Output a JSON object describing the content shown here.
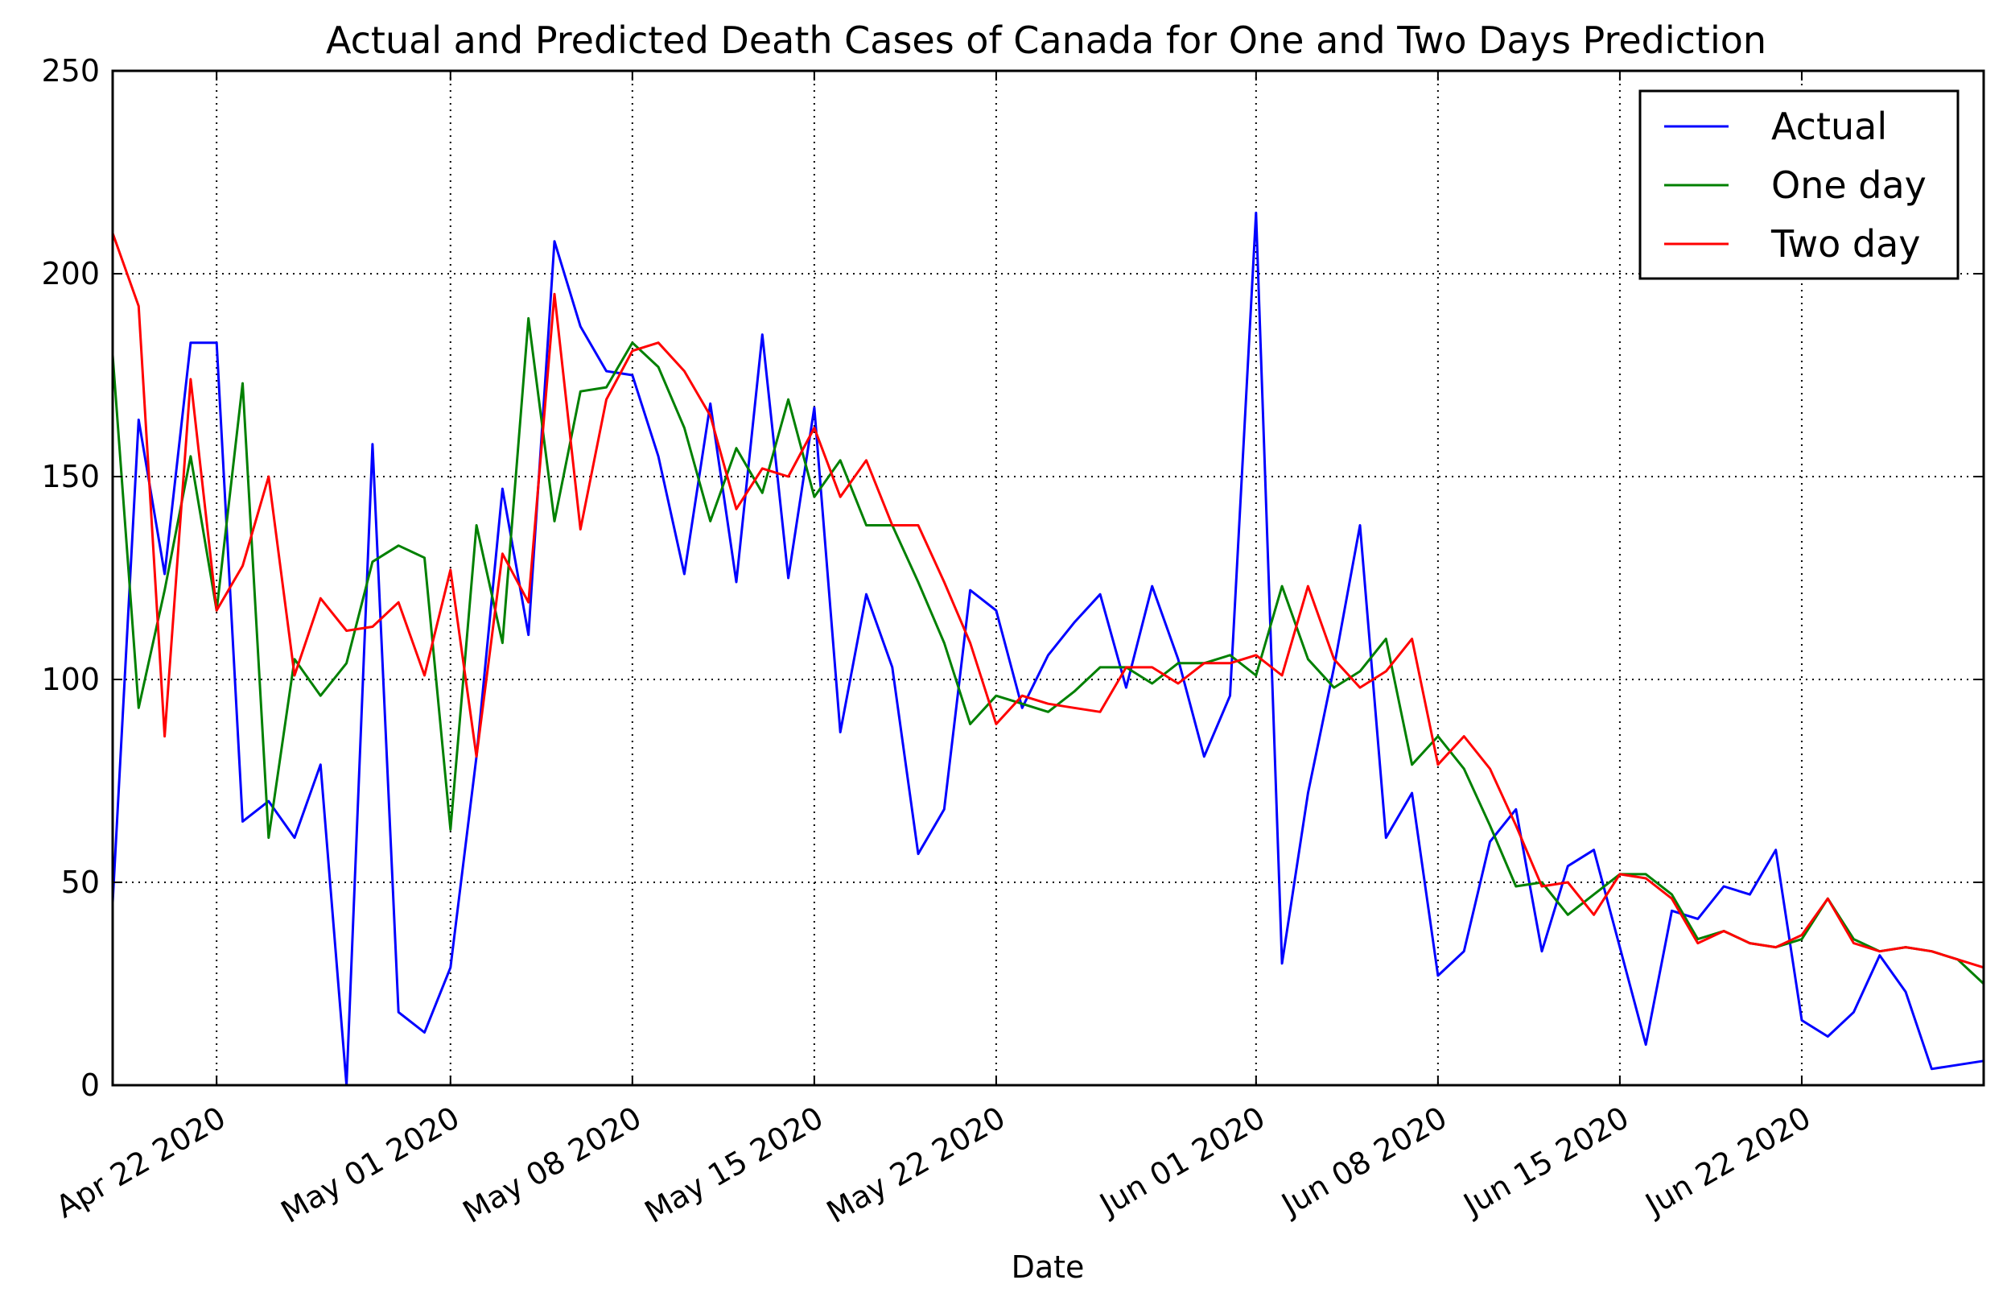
{
  "chart_data": {
    "type": "line",
    "title": "Actual and Predicted Death Cases of Canada for One and Two Days Prediction",
    "xlabel": "Date",
    "ylabel": "",
    "x_start": "2020-04-18",
    "x": [
      "2020-04-18",
      "2020-04-19",
      "2020-04-20",
      "2020-04-21",
      "2020-04-22",
      "2020-04-23",
      "2020-04-24",
      "2020-04-25",
      "2020-04-26",
      "2020-04-27",
      "2020-04-28",
      "2020-04-29",
      "2020-04-30",
      "2020-05-01",
      "2020-05-02",
      "2020-05-03",
      "2020-05-04",
      "2020-05-05",
      "2020-05-06",
      "2020-05-07",
      "2020-05-08",
      "2020-05-09",
      "2020-05-10",
      "2020-05-11",
      "2020-05-12",
      "2020-05-13",
      "2020-05-14",
      "2020-05-15",
      "2020-05-16",
      "2020-05-17",
      "2020-05-18",
      "2020-05-19",
      "2020-05-20",
      "2020-05-21",
      "2020-05-22",
      "2020-05-23",
      "2020-05-24",
      "2020-05-25",
      "2020-05-26",
      "2020-05-27",
      "2020-05-28",
      "2020-05-29",
      "2020-05-30",
      "2020-05-31",
      "2020-06-01",
      "2020-06-02",
      "2020-06-03",
      "2020-06-04",
      "2020-06-05",
      "2020-06-06",
      "2020-06-07",
      "2020-06-08",
      "2020-06-09",
      "2020-06-10",
      "2020-06-11",
      "2020-06-12",
      "2020-06-13",
      "2020-06-14",
      "2020-06-15",
      "2020-06-16",
      "2020-06-17",
      "2020-06-18",
      "2020-06-19",
      "2020-06-20",
      "2020-06-21",
      "2020-06-22",
      "2020-06-23",
      "2020-06-24",
      "2020-06-25",
      "2020-06-26",
      "2020-06-27",
      "2020-06-28",
      "2020-06-29"
    ],
    "xlim": [
      "2020-04-18",
      "2020-06-29"
    ],
    "ylim": [
      0,
      250
    ],
    "x_ticks": [
      "2020-04-22",
      "2020-05-01",
      "2020-05-08",
      "2020-05-15",
      "2020-05-22",
      "2020-06-01",
      "2020-06-08",
      "2020-06-15",
      "2020-06-22"
    ],
    "x_tick_labels": [
      "Apr 22 2020",
      "May 01 2020",
      "May 08 2020",
      "May 15 2020",
      "May 22 2020",
      "Jun 01 2020",
      "Jun 08 2020",
      "Jun 15 2020",
      "Jun 22 2020"
    ],
    "y_ticks": [
      0,
      50,
      100,
      150,
      200,
      250
    ],
    "y_tick_labels": [
      "0",
      "50",
      "100",
      "150",
      "200",
      "250"
    ],
    "grid": true,
    "legend_position": "top-right",
    "series": [
      {
        "name": "Actual",
        "color": "#0000ff",
        "values": [
          45,
          164,
          126,
          183,
          183,
          65,
          70,
          61,
          79,
          0,
          158,
          18,
          13,
          29,
          81,
          147,
          111,
          208,
          187,
          176,
          175,
          155,
          126,
          168,
          124,
          185,
          125,
          167,
          87,
          121,
          103,
          57,
          68,
          122,
          117,
          93,
          106,
          114,
          121,
          98,
          123,
          105,
          81,
          96,
          215,
          30,
          72,
          103,
          138,
          61,
          72,
          27,
          33,
          60,
          68,
          33,
          54,
          58,
          34,
          10,
          43,
          41,
          49,
          47,
          58,
          16,
          12,
          18,
          32,
          23,
          4,
          5,
          6
        ]
      },
      {
        "name": "One day",
        "color": "#008000",
        "values": [
          180,
          93,
          122,
          155,
          117,
          173,
          61,
          105,
          96,
          104,
          129,
          133,
          130,
          63,
          138,
          109,
          189,
          139,
          171,
          172,
          183,
          177,
          162,
          139,
          157,
          146,
          169,
          145,
          154,
          138,
          138,
          124,
          109,
          89,
          96,
          94,
          92,
          97,
          103,
          103,
          99,
          104,
          104,
          106,
          101,
          123,
          105,
          98,
          102,
          110,
          79,
          86,
          78,
          64,
          49,
          50,
          42,
          47,
          52,
          52,
          47,
          36,
          38,
          35,
          34,
          36,
          46,
          36,
          33,
          34,
          33,
          31,
          25
        ]
      },
      {
        "name": "Two day",
        "color": "#ff0000",
        "values": [
          210,
          192,
          86,
          174,
          117,
          128,
          150,
          101,
          120,
          112,
          113,
          119,
          101,
          127,
          81,
          131,
          119,
          195,
          137,
          169,
          181,
          183,
          176,
          165,
          142,
          152,
          150,
          162,
          145,
          154,
          138,
          138,
          124,
          109,
          89,
          96,
          94,
          93,
          92,
          103,
          103,
          99,
          104,
          104,
          106,
          101,
          123,
          105,
          98,
          102,
          110,
          79,
          86,
          78,
          64,
          49,
          50,
          42,
          52,
          51,
          46,
          35,
          38,
          35,
          34,
          37,
          46,
          35,
          33,
          34,
          33,
          31,
          29
        ]
      }
    ]
  }
}
